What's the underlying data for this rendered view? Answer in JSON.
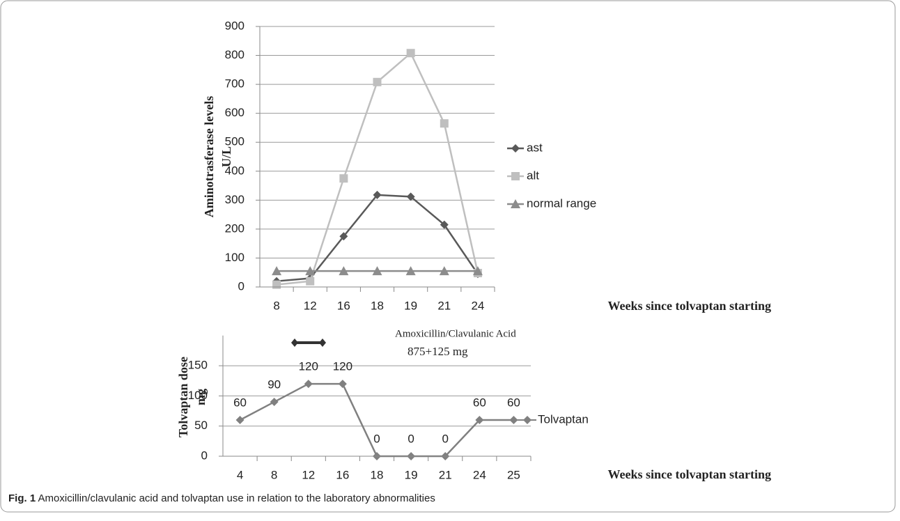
{
  "chart_data": [
    {
      "type": "line",
      "categories": [
        "8",
        "12",
        "16",
        "18",
        "19",
        "21",
        "24"
      ],
      "series": [
        {
          "name": "ast",
          "color": "#595959",
          "marker": "diamond",
          "values": [
            20,
            30,
            175,
            318,
            312,
            215,
            45
          ]
        },
        {
          "name": "alt",
          "color": "#bfbfbf",
          "marker": "square",
          "values": [
            8,
            20,
            375,
            708,
            808,
            565,
            48
          ]
        },
        {
          "name": "normal range",
          "color": "#8c8c8c",
          "marker": "triangle",
          "values": [
            55,
            55,
            55,
            55,
            55,
            55,
            55
          ]
        }
      ],
      "ylim": [
        0,
        900
      ],
      "yticks": [
        0,
        100,
        200,
        300,
        400,
        500,
        600,
        700,
        800,
        900
      ],
      "grid": true,
      "ylabel": [
        "Aminotrasferase levels",
        "U/L"
      ],
      "xlabel": "Weeks since tolvaptan starting",
      "legend": "right"
    },
    {
      "type": "line",
      "categories": [
        "4",
        "8",
        "12",
        "16",
        "18",
        "19",
        "21",
        "24",
        "25"
      ],
      "series": [
        {
          "name": "Tolvaptan",
          "color": "#808080",
          "marker": "diamond",
          "values": [
            60,
            90,
            120,
            120,
            0,
            0,
            0,
            60,
            60
          ]
        }
      ],
      "ylim": [
        0,
        200
      ],
      "yticks": [
        0,
        50,
        100,
        150
      ],
      "grid": true,
      "data_labels": true,
      "ylabel": [
        "Tolvaptan dose",
        "mg"
      ],
      "xlabel": "Weeks since tolvaptan starting",
      "annotations": [
        "Amoxicillin/Clavulanic Acid",
        "875+125 mg"
      ],
      "legend": "line-end"
    }
  ],
  "caption": {
    "label": "Fig. 1",
    "text": "Amoxicillin/clavulanic acid and tolvaptan use in relation to the laboratory abnormalities"
  }
}
